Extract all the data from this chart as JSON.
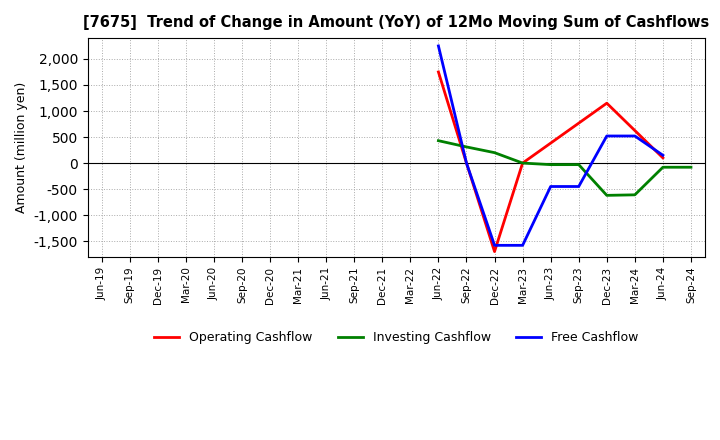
{
  "title": "[7675]  Trend of Change in Amount (YoY) of 12Mo Moving Sum of Cashflows",
  "ylabel": "Amount (million yen)",
  "x_labels": [
    "Jun-19",
    "Sep-19",
    "Dec-19",
    "Mar-20",
    "Jun-20",
    "Sep-20",
    "Dec-20",
    "Mar-21",
    "Jun-21",
    "Sep-21",
    "Dec-21",
    "Mar-22",
    "Jun-22",
    "Sep-22",
    "Dec-22",
    "Mar-23",
    "Jun-23",
    "Sep-23",
    "Dec-23",
    "Mar-24",
    "Jun-24",
    "Sep-24"
  ],
  "op_x_idx": [
    12,
    13,
    14,
    15,
    18,
    20
  ],
  "op_y": [
    1750,
    0,
    -1700,
    0,
    1150,
    100
  ],
  "inv_x_idx": [
    12,
    13,
    14,
    15,
    16,
    17,
    18,
    19,
    20,
    21
  ],
  "inv_y": [
    430,
    310,
    200,
    0,
    -30,
    -30,
    -620,
    -610,
    -80,
    -80
  ],
  "free_x_idx": [
    12,
    13,
    14,
    15,
    16,
    17,
    18,
    19,
    20
  ],
  "free_y": [
    2250,
    0,
    -1580,
    -1580,
    -450,
    -450,
    520,
    520,
    150
  ],
  "ylim": [
    -1800,
    2400
  ],
  "yticks": [
    -1500,
    -1000,
    -500,
    0,
    500,
    1000,
    1500,
    2000
  ],
  "bg_color": "#ffffff",
  "grid_color": "#aaaaaa",
  "op_color": "#ff0000",
  "inv_color": "#008000",
  "free_color": "#0000ff",
  "legend_labels": [
    "Operating Cashflow",
    "Investing Cashflow",
    "Free Cashflow"
  ]
}
